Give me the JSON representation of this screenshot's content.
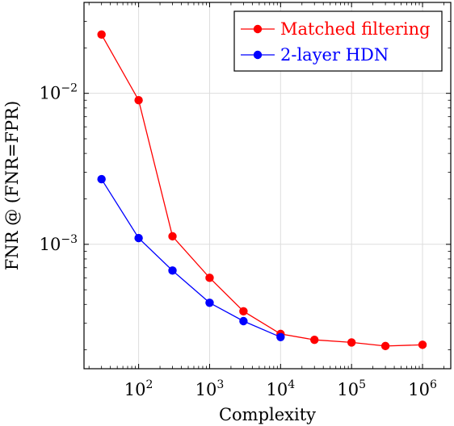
{
  "chart_data": {
    "type": "line",
    "title": "",
    "xlabel": "Complexity",
    "ylabel": "FNR @ (FNR=FPR)",
    "x_scale": "log",
    "y_scale": "log",
    "xlim": [
      17,
      2500000
    ],
    "ylim": [
      0.00015,
      0.04
    ],
    "grid": true,
    "legend_position": "top-right",
    "x_ticks": [
      {
        "value": 100,
        "base": "10",
        "exp": "2"
      },
      {
        "value": 1000,
        "base": "10",
        "exp": "3"
      },
      {
        "value": 10000,
        "base": "10",
        "exp": "4"
      },
      {
        "value": 100000,
        "base": "10",
        "exp": "5"
      },
      {
        "value": 1000000,
        "base": "10",
        "exp": "6"
      }
    ],
    "y_ticks": [
      {
        "value": 0.01,
        "base": "10",
        "exp": "−2"
      },
      {
        "value": 0.001,
        "base": "10",
        "exp": "−3"
      }
    ],
    "series": [
      {
        "name": "Matched filtering",
        "color": "#ff0000",
        "x": [
          30,
          100,
          300,
          1000,
          3000,
          10000,
          30000,
          100000,
          300000,
          1000000
        ],
        "y": [
          0.0245,
          0.009,
          0.00113,
          0.0006,
          0.00036,
          0.000255,
          0.000233,
          0.000224,
          0.000212,
          0.000216
        ]
      },
      {
        "name": "2-layer HDN",
        "color": "#0000ff",
        "x": [
          30,
          100,
          300,
          1000,
          3000,
          10000
        ],
        "y": [
          0.0027,
          0.0011,
          0.00067,
          0.00041,
          0.00031,
          0.000243
        ]
      }
    ]
  }
}
